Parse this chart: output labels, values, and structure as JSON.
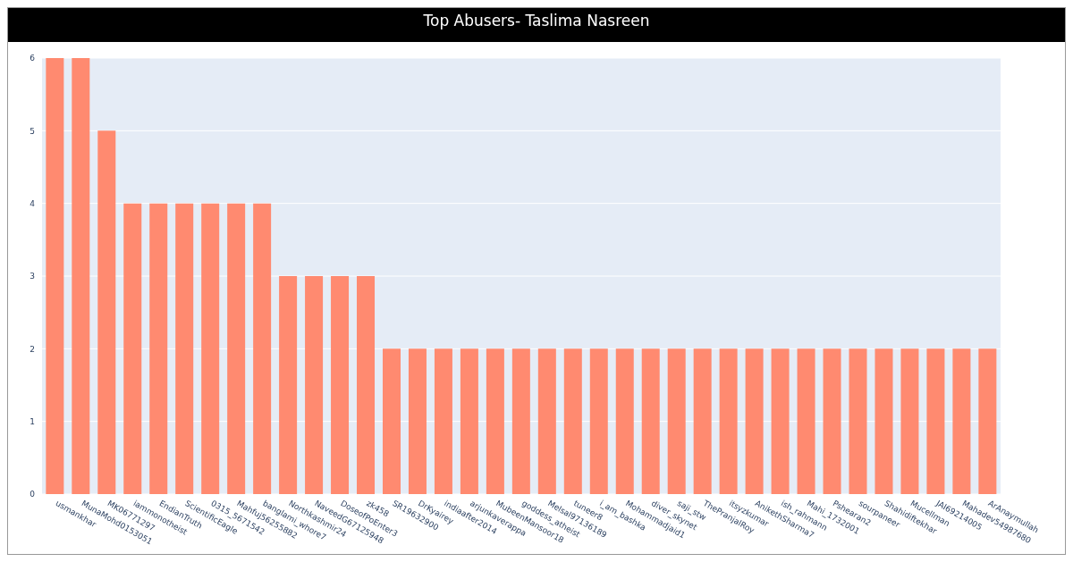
{
  "chart_data": {
    "type": "bar",
    "title": "Top Abusers- Taslima Nasreen",
    "categories": [
      "usmankhar",
      "MunaMohd0153051",
      "MK06771297",
      "iammonotheist",
      "EndianTruth",
      "ScientificEagle",
      "0315_5671542",
      "Mahfuj56255882",
      "banglami_whore7",
      "Northkashmir24",
      "NaveedG67125948",
      "DoseofPoEnter3",
      "zk458",
      "SR19632900",
      "DrKyairey",
      "indiaafter2014",
      "arjunkaverappa",
      "MubeenMansoor18",
      "goddess_atheist",
      "Melsal97136189",
      "tuneer8",
      "i_am_bashka",
      "Mohammadjaid1",
      "diver_skynet",
      "saji_stw",
      "ThePranjalRoy",
      "itsyzkumar",
      "AnikethSharma7",
      "ish_rahmann",
      "Mahi_1732001",
      "Pshearan2",
      "sourpaneer",
      "Shahidiftekhar",
      "Mucellman",
      "JAI69214005",
      "Mahadev54987680",
      "ArAnaymullah"
    ],
    "values": [
      6,
      6,
      5,
      4,
      4,
      4,
      4,
      4,
      4,
      3,
      3,
      3,
      3,
      2,
      2,
      2,
      2,
      2,
      2,
      2,
      2,
      2,
      2,
      2,
      2,
      2,
      2,
      2,
      2,
      2,
      2,
      2,
      2,
      2,
      2,
      2,
      2
    ],
    "color": "#ff8a70",
    "ylim": [
      0,
      6
    ],
    "yticks": [
      0,
      1,
      2,
      3,
      4,
      5,
      6
    ],
    "grid": "y"
  }
}
